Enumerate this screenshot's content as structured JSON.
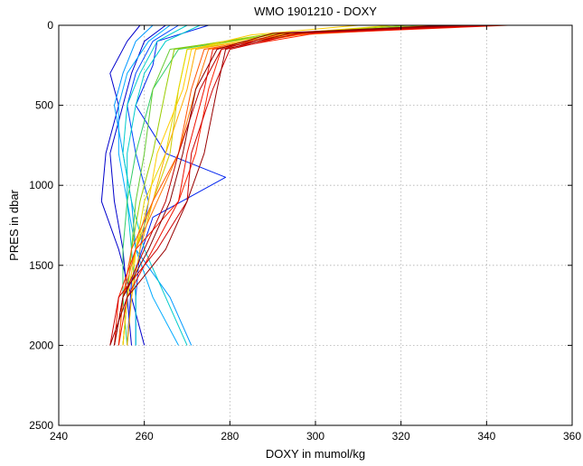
{
  "chart_data": {
    "type": "line",
    "title": "WMO 1901210 - DOXY",
    "xlabel": "DOXY in mumol/kg",
    "ylabel": "PRES in dbar",
    "xlim": [
      240,
      360
    ],
    "ylim": [
      0,
      2500
    ],
    "y_reversed": true,
    "grid": true,
    "xticks": [
      "240",
      "260",
      "280",
      "300",
      "320",
      "340",
      "360"
    ],
    "yticks": [
      "0",
      "500",
      "1000",
      "1500",
      "2000",
      "2500"
    ],
    "colormap": [
      "#0000cc",
      "#0044ff",
      "#0099ff",
      "#00cccc",
      "#33cc66",
      "#99cc00",
      "#e6d800",
      "#ffaa00",
      "#ff5500",
      "#cc0000",
      "#990000"
    ],
    "series": [
      {
        "color": "#0000cc",
        "x": [
          259,
          256,
          252,
          254,
          251,
          250,
          254,
          257,
          260
        ],
        "y": [
          0,
          100,
          300,
          500,
          800,
          1100,
          1400,
          1700,
          2000
        ]
      },
      {
        "color": "#0000cc",
        "x": [
          265,
          260,
          257,
          255,
          252,
          253,
          255,
          256,
          257
        ],
        "y": [
          0,
          100,
          300,
          500,
          800,
          1100,
          1400,
          1700,
          2000
        ]
      },
      {
        "color": "#0022ee",
        "x": [
          275,
          263,
          262,
          258,
          265,
          279,
          262,
          257,
          256
        ],
        "y": [
          0,
          100,
          250,
          500,
          800,
          950,
          1200,
          1600,
          2000
        ]
      },
      {
        "color": "#0044ff",
        "x": [
          268,
          262,
          258,
          256,
          258,
          261,
          259,
          258,
          258
        ],
        "y": [
          0,
          100,
          300,
          500,
          800,
          1100,
          1400,
          1700,
          2000
        ]
      },
      {
        "color": "#0099ff",
        "x": [
          262,
          258,
          255,
          253,
          255,
          257,
          258,
          266,
          271
        ],
        "y": [
          0,
          100,
          300,
          500,
          800,
          1100,
          1400,
          1700,
          2000
        ]
      },
      {
        "color": "#00aaff",
        "x": [
          266,
          261,
          256,
          254,
          254,
          256,
          258,
          262,
          268
        ],
        "y": [
          0,
          100,
          300,
          500,
          800,
          1100,
          1400,
          1700,
          2000
        ]
      },
      {
        "color": "#00cccc",
        "x": [
          270,
          263,
          259,
          256,
          255,
          257,
          260,
          265,
          270
        ],
        "y": [
          0,
          100,
          300,
          500,
          800,
          1100,
          1400,
          1700,
          2000
        ]
      },
      {
        "color": "#00cccc",
        "x": [
          273,
          265,
          260,
          258,
          256,
          256,
          257,
          258,
          258
        ],
        "y": [
          0,
          100,
          300,
          500,
          800,
          1100,
          1400,
          1700,
          2000
        ]
      },
      {
        "color": "#33cc66",
        "x": [
          330,
          290,
          268,
          262,
          258,
          256,
          255,
          255,
          256
        ],
        "y": [
          0,
          60,
          150,
          400,
          800,
          1100,
          1400,
          1700,
          2000
        ]
      },
      {
        "color": "#66cc33",
        "x": [
          326,
          290,
          266,
          262,
          260,
          258,
          257,
          256,
          255
        ],
        "y": [
          0,
          60,
          150,
          400,
          800,
          1100,
          1400,
          1700,
          2000
        ]
      },
      {
        "color": "#99cc00",
        "x": [
          322,
          288,
          267,
          265,
          262,
          259,
          257,
          256,
          255
        ],
        "y": [
          0,
          60,
          150,
          400,
          800,
          1100,
          1400,
          1700,
          2000
        ]
      },
      {
        "color": "#cccc00",
        "x": [
          335,
          295,
          270,
          268,
          266,
          262,
          258,
          256,
          255
        ],
        "y": [
          0,
          60,
          150,
          400,
          800,
          1100,
          1400,
          1700,
          2000
        ]
      },
      {
        "color": "#e6d800",
        "x": [
          318,
          290,
          270,
          268,
          265,
          260,
          258,
          257,
          256
        ],
        "y": [
          0,
          60,
          150,
          400,
          800,
          1100,
          1400,
          1700,
          2000
        ]
      },
      {
        "color": "#ffcc00",
        "x": [
          310,
          285,
          271,
          269,
          263,
          261,
          258,
          256,
          255
        ],
        "y": [
          0,
          60,
          150,
          400,
          800,
          1100,
          1400,
          1700,
          2000
        ]
      },
      {
        "color": "#ffaa00",
        "x": [
          328,
          292,
          272,
          270,
          265,
          262,
          259,
          257,
          256
        ],
        "y": [
          0,
          60,
          150,
          400,
          800,
          1100,
          1400,
          1700,
          2000
        ]
      },
      {
        "color": "#ff7700",
        "x": [
          338,
          296,
          275,
          272,
          268,
          263,
          258,
          255,
          254
        ],
        "y": [
          0,
          60,
          150,
          400,
          800,
          1100,
          1400,
          1700,
          2000
        ]
      },
      {
        "color": "#ff5500",
        "x": [
          332,
          293,
          274,
          271,
          268,
          262,
          257,
          255,
          254
        ],
        "y": [
          0,
          60,
          150,
          400,
          800,
          1100,
          1400,
          1700,
          2000
        ]
      },
      {
        "color": "#ff2200",
        "x": [
          345,
          300,
          278,
          275,
          272,
          268,
          258,
          254,
          253
        ],
        "y": [
          0,
          50,
          150,
          400,
          800,
          1100,
          1400,
          1700,
          2000
        ]
      },
      {
        "color": "#ee1100",
        "x": [
          340,
          297,
          276,
          274,
          270,
          268,
          262,
          256,
          254
        ],
        "y": [
          0,
          50,
          150,
          400,
          800,
          1100,
          1400,
          1700,
          2000
        ]
      },
      {
        "color": "#cc0000",
        "x": [
          342,
          296,
          280,
          276,
          271,
          270,
          263,
          254,
          252
        ],
        "y": [
          0,
          50,
          150,
          400,
          800,
          1100,
          1400,
          1700,
          2000
        ]
      },
      {
        "color": "#bb0000",
        "x": [
          336,
          292,
          278,
          273,
          268,
          265,
          260,
          255,
          253
        ],
        "y": [
          0,
          50,
          150,
          400,
          800,
          1100,
          1400,
          1700,
          2000
        ]
      },
      {
        "color": "#990000",
        "x": [
          334,
          294,
          279,
          277,
          274,
          270,
          265,
          256,
          252
        ],
        "y": [
          0,
          50,
          150,
          400,
          800,
          1100,
          1400,
          1700,
          2000
        ]
      },
      {
        "color": "#880000",
        "x": [
          331,
          290,
          277,
          272,
          269,
          266,
          261,
          255,
          253
        ],
        "y": [
          0,
          50,
          150,
          400,
          800,
          1100,
          1400,
          1700,
          2000
        ]
      }
    ]
  }
}
